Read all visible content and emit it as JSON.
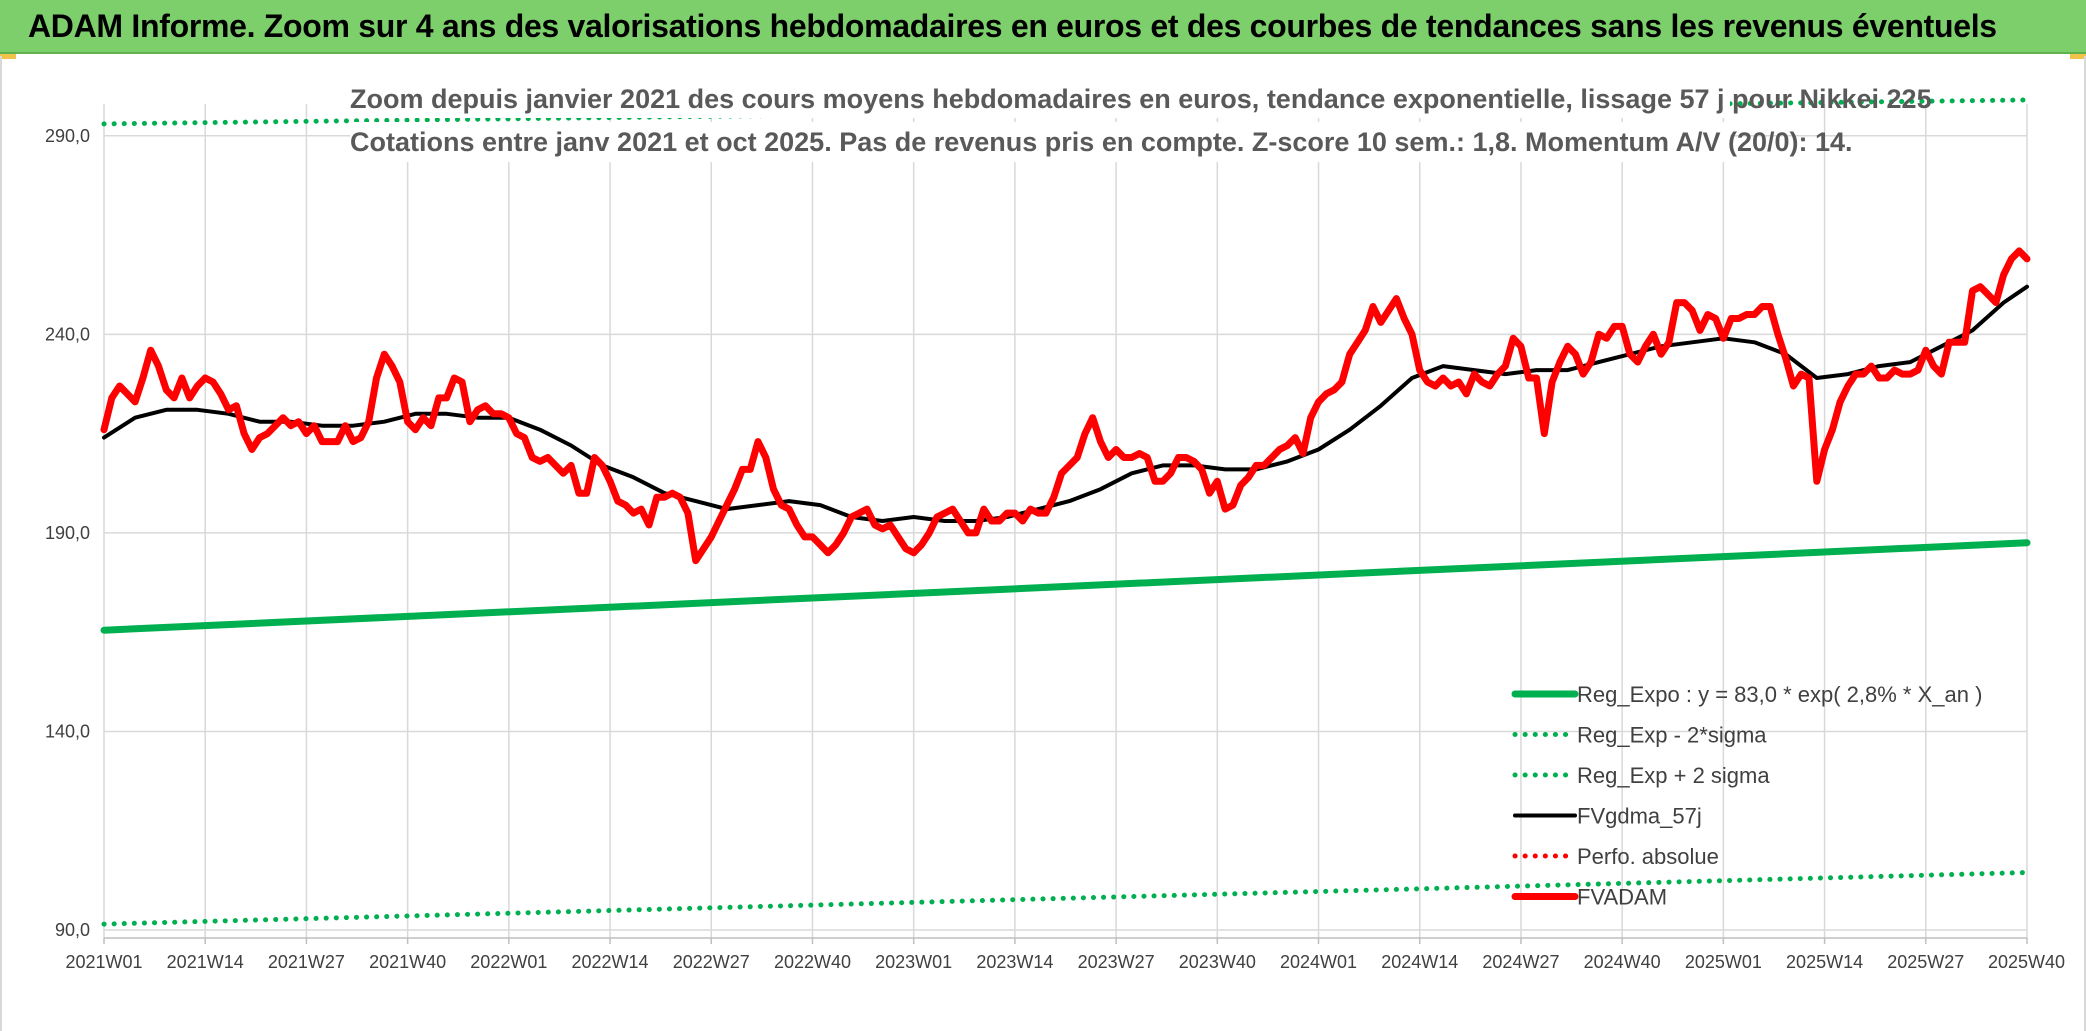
{
  "banner": {
    "title": "ADAM Informe. Zoom sur 4 ans des valorisations hebdomadaires en euros et des courbes de tendances sans les revenus éventuels"
  },
  "chart_data": {
    "type": "line",
    "title": "Zoom depuis janvier 2021 des cours moyens hebdomadaires en euros, tendance exponentielle, lissage 57 j pour Nikkei 225",
    "subtitle": "Cotations entre janv 2021 et oct 2025. Pas de revenus pris en compte. Z-score 10 sem.: 1,8. Momentum A/V (20/0): 14.",
    "xlabel": "",
    "ylabel": "",
    "ylim": [
      88,
      298
    ],
    "yticks": [
      90,
      140,
      190,
      240,
      290
    ],
    "ytick_labels": [
      "90,0",
      "140,0",
      "190,0",
      "240,0",
      "290,0"
    ],
    "xticks": [
      "2021W01",
      "2021W14",
      "2021W27",
      "2021W40",
      "2022W01",
      "2022W14",
      "2022W27",
      "2022W40",
      "2023W01",
      "2023W14",
      "2023W27",
      "2023W40",
      "2024W01",
      "2024W14",
      "2024W27",
      "2024W40",
      "2025W01",
      "2025W14",
      "2025W27",
      "2025W40"
    ],
    "x_range_weeks": [
      0,
      247
    ],
    "grid": true,
    "legend_position": "bottom-right",
    "series": [
      {
        "name": "Reg_Expo : y = 83,0 * exp( 2,8% *  X_an )",
        "color": "#00b050",
        "style": "solid-thick",
        "x": [
          0,
          247
        ],
        "values": [
          165.5,
          187.5
        ]
      },
      {
        "name": "Reg_Exp - 2*sigma",
        "color": "#00b050",
        "style": "dotted",
        "x": [
          0,
          247
        ],
        "values": [
          91.5,
          104.5
        ]
      },
      {
        "name": "Reg_Exp + 2 sigma",
        "color": "#00b050",
        "style": "dotted",
        "x": [
          0,
          247
        ],
        "values": [
          293,
          299
        ]
      },
      {
        "name": "FVgdma_57j",
        "color": "#000000",
        "style": "solid",
        "x": [
          0,
          4,
          8,
          12,
          16,
          20,
          24,
          28,
          32,
          36,
          40,
          44,
          48,
          52,
          56,
          60,
          64,
          68,
          72,
          76,
          80,
          84,
          88,
          92,
          96,
          100,
          104,
          108,
          112,
          116,
          120,
          124,
          128,
          132,
          136,
          140,
          144,
          148,
          152,
          156,
          160,
          164,
          168,
          172,
          176,
          180,
          184,
          188,
          192,
          196,
          200,
          204,
          208,
          212,
          216,
          220,
          224,
          228,
          232,
          236,
          240,
          244,
          247
        ],
        "values": [
          214,
          219,
          221,
          221,
          220,
          218,
          218,
          217,
          217,
          218,
          220,
          220,
          219,
          219,
          216,
          212,
          207,
          204,
          200,
          198,
          196,
          197,
          198,
          197,
          194,
          193,
          194,
          193,
          193,
          194,
          196,
          198,
          201,
          205,
          207,
          207,
          206,
          206,
          208,
          211,
          216,
          222,
          229,
          232,
          231,
          230,
          231,
          231,
          233,
          235,
          237,
          238,
          239,
          238,
          235,
          229,
          230,
          232,
          233,
          237,
          241,
          248,
          252
        ]
      },
      {
        "name": "Perfo. absolue",
        "color": "#ff0000",
        "style": "dotted",
        "x": [],
        "values": []
      },
      {
        "name": "FVADAM",
        "color": "#ff0000",
        "style": "solid-thick",
        "x": [
          0,
          1,
          2,
          3,
          4,
          5,
          6,
          7,
          8,
          9,
          10,
          11,
          12,
          13,
          14,
          15,
          16,
          17,
          18,
          19,
          20,
          21,
          22,
          23,
          24,
          25,
          26,
          27,
          28,
          29,
          30,
          31,
          32,
          33,
          34,
          35,
          36,
          37,
          38,
          39,
          40,
          41,
          42,
          43,
          44,
          45,
          46,
          47,
          48,
          49,
          50,
          51,
          52,
          53,
          54,
          55,
          56,
          57,
          58,
          59,
          60,
          61,
          62,
          63,
          64,
          65,
          66,
          67,
          68,
          69,
          70,
          71,
          72,
          73,
          74,
          75,
          76,
          77,
          78,
          79,
          80,
          81,
          82,
          83,
          84,
          85,
          86,
          87,
          88,
          89,
          90,
          91,
          92,
          93,
          94,
          95,
          96,
          97,
          98,
          99,
          100,
          101,
          102,
          103,
          104,
          105,
          106,
          107,
          108,
          109,
          110,
          111,
          112,
          113,
          114,
          115,
          116,
          117,
          118,
          119,
          120,
          121,
          122,
          123,
          124,
          125,
          126,
          127,
          128,
          129,
          130,
          131,
          132,
          133,
          134,
          135,
          136,
          137,
          138,
          139,
          140,
          141,
          142,
          143,
          144,
          145,
          146,
          147,
          148,
          149,
          150,
          151,
          152,
          153,
          154,
          155,
          156,
          157,
          158,
          159,
          160,
          161,
          162,
          163,
          164,
          165,
          166,
          167,
          168,
          169,
          170,
          171,
          172,
          173,
          174,
          175,
          176,
          177,
          178,
          179,
          180,
          181,
          182,
          183,
          184,
          185,
          186,
          187,
          188,
          189,
          190,
          191,
          192,
          193,
          194,
          195,
          196,
          197,
          198,
          199,
          200,
          201,
          202,
          203,
          204,
          205,
          206,
          207,
          208,
          209,
          210,
          211,
          212,
          213,
          214,
          215,
          216,
          217,
          218,
          219,
          220,
          221,
          222,
          223,
          224,
          225,
          226,
          227,
          228,
          229,
          230,
          231,
          232,
          233,
          234,
          235,
          236,
          237,
          238,
          239,
          240,
          241,
          242,
          243,
          244,
          245,
          246,
          247
        ],
        "values": [
          216,
          224,
          227,
          225,
          223,
          229,
          236,
          232,
          226,
          224,
          229,
          224,
          227,
          229,
          228,
          225,
          221,
          222,
          215,
          211,
          214,
          215,
          217,
          219,
          217,
          218,
          215,
          217,
          213,
          213,
          213,
          217,
          213,
          214,
          218,
          229,
          235,
          232,
          228,
          218,
          216,
          219,
          217,
          224,
          224,
          229,
          228,
          218,
          221,
          222,
          220,
          220,
          219,
          215,
          214,
          209,
          208,
          209,
          207,
          205,
          207,
          200,
          200,
          209,
          207,
          203,
          198,
          197,
          195,
          196,
          192,
          199,
          199,
          200,
          199,
          195,
          183,
          186,
          189,
          193,
          197,
          201,
          206,
          206,
          213,
          209,
          201,
          197,
          196,
          192,
          189,
          189,
          187,
          185,
          187,
          190,
          194,
          195,
          196,
          192,
          191,
          192,
          189,
          186,
          185,
          187,
          190,
          194,
          195,
          196,
          193,
          190,
          190,
          196,
          193,
          193,
          195,
          195,
          193,
          196,
          195,
          195,
          199,
          205,
          207,
          209,
          215,
          219,
          213,
          209,
          211,
          209,
          209,
          210,
          209,
          203,
          203,
          205,
          209,
          209,
          208,
          206,
          200,
          203,
          196,
          197,
          202,
          204,
          207,
          207,
          209,
          211,
          212,
          214,
          210,
          219,
          223,
          225,
          226,
          228,
          235,
          238,
          241,
          247,
          243,
          246,
          249,
          244,
          240,
          231,
          228,
          227,
          229,
          227,
          228,
          225,
          230,
          228,
          227,
          230,
          232,
          239,
          237,
          229,
          229,
          215,
          228,
          233,
          237,
          235,
          230,
          233,
          240,
          239,
          242,
          242,
          235,
          233,
          237,
          240,
          235,
          238,
          248,
          248,
          246,
          241,
          245,
          244,
          239,
          244,
          244,
          245,
          245,
          247,
          247,
          240,
          234,
          227,
          230,
          229,
          203,
          211,
          216,
          223,
          227,
          230,
          230,
          232,
          229,
          229,
          231,
          230,
          230,
          231,
          236,
          232,
          230,
          238,
          238,
          238,
          251,
          252,
          250,
          248,
          255,
          259,
          261,
          259
        ]
      }
    ]
  }
}
